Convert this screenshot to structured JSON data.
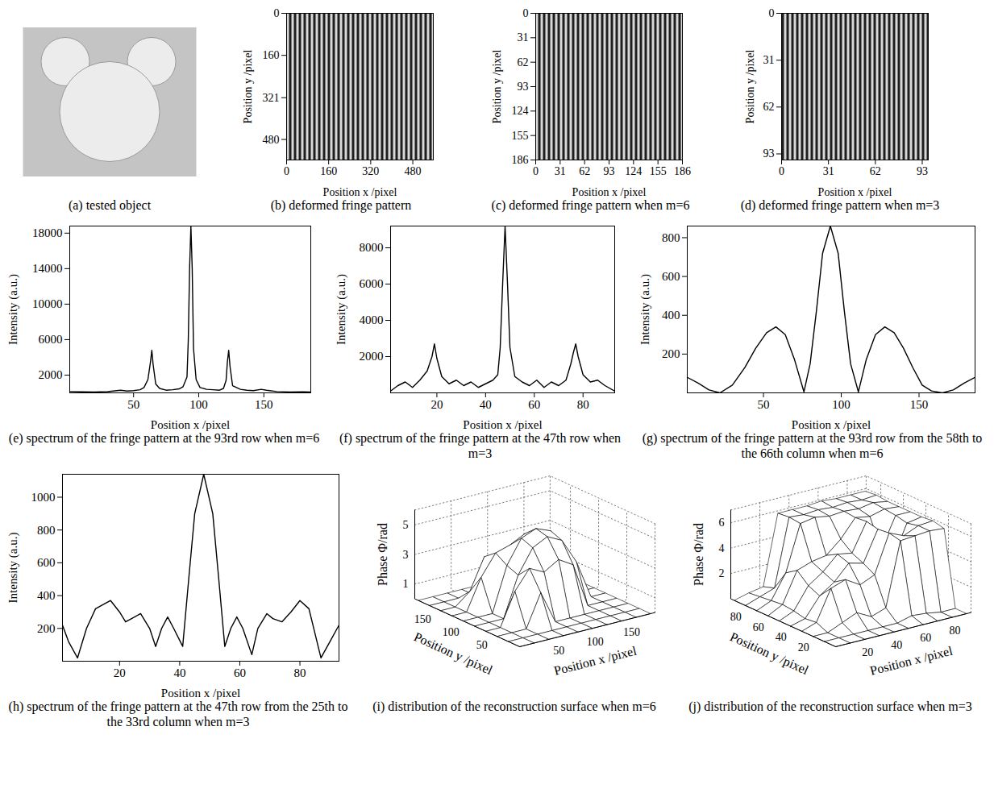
{
  "chart_data": [
    {
      "type": "photo",
      "title": "(a) tested object"
    },
    {
      "type": "image",
      "title": "(b) deformed fringe pattern",
      "xlabel": "Position x /pixel",
      "ylabel": "Position y /pixel",
      "xlim": [
        0,
        558
      ],
      "ylim": [
        0,
        558
      ],
      "xticks": [
        0,
        160,
        320,
        480
      ],
      "yticks": [
        0,
        160,
        321,
        480
      ]
    },
    {
      "type": "image",
      "title": "(c) deformed fringe pattern when m=6",
      "xlabel": "Position x /pixel",
      "ylabel": "Position y /pixel",
      "xlim": [
        0,
        186
      ],
      "ylim": [
        0,
        186
      ],
      "xticks": [
        0,
        31,
        62,
        93,
        124,
        155,
        186
      ],
      "yticks": [
        0,
        31,
        62,
        93,
        124,
        155,
        186
      ]
    },
    {
      "type": "image",
      "title": "(d) deformed fringe pattern when m=3",
      "xlabel": "Position x /pixel",
      "ylabel": "Position y /pixel",
      "xlim": [
        0,
        97
      ],
      "ylim": [
        0,
        97
      ],
      "xticks": [
        0,
        31,
        62,
        93
      ],
      "yticks": [
        0,
        31,
        62,
        93
      ]
    },
    {
      "type": "line",
      "title": "(e) spectrum of the fringe pattern at the 93rd row when m=6",
      "xlabel": "Position x /pixel",
      "ylabel": "Intensity (a.u.)",
      "color": "#000000",
      "x": [
        1,
        10,
        20,
        30,
        40,
        45,
        50,
        55,
        58,
        61,
        63,
        64,
        65,
        67,
        70,
        75,
        80,
        85,
        88,
        91,
        92,
        93,
        94,
        95,
        96,
        98,
        101,
        106,
        111,
        116,
        119,
        121,
        122,
        123,
        124,
        126,
        129,
        132,
        137,
        142,
        148,
        152,
        160,
        170,
        180,
        186
      ],
      "values": [
        150,
        120,
        100,
        130,
        300,
        200,
        250,
        350,
        600,
        1500,
        3500,
        4800,
        3200,
        1000,
        500,
        300,
        350,
        450,
        700,
        1800,
        6000,
        14000,
        18800,
        14000,
        5000,
        1500,
        600,
        400,
        350,
        300,
        500,
        1400,
        3500,
        4800,
        3000,
        800,
        600,
        400,
        300,
        250,
        400,
        300,
        150,
        100,
        120,
        100
      ],
      "xlim": [
        1,
        186
      ],
      "ylim": [
        0,
        18800
      ],
      "xticks": [
        50,
        100,
        150
      ],
      "yticks": [
        2000,
        6000,
        10000,
        14000,
        18000
      ]
    },
    {
      "type": "line",
      "title": "(f) spectrum of the fringe pattern at the 47th row when m=3",
      "xlabel": "Position x /pixel",
      "ylabel": "Intensity (a.u.)",
      "color": "#000000",
      "x": [
        1,
        4,
        7,
        10,
        13,
        16,
        18,
        19,
        20,
        22,
        25,
        28,
        31,
        34,
        37,
        40,
        43,
        45,
        46,
        47,
        48,
        49,
        50,
        52,
        55,
        58,
        61,
        64,
        67,
        70,
        73,
        75,
        76,
        77,
        78,
        80,
        83,
        86,
        89,
        93
      ],
      "values": [
        100,
        400,
        600,
        300,
        700,
        1200,
        2000,
        2700,
        1900,
        900,
        500,
        700,
        400,
        600,
        300,
        500,
        700,
        1000,
        2500,
        6000,
        9200,
        6000,
        2500,
        900,
        600,
        400,
        700,
        300,
        600,
        400,
        700,
        1600,
        2200,
        2700,
        2000,
        1000,
        600,
        700,
        400,
        100
      ],
      "xlim": [
        1,
        93
      ],
      "ylim": [
        0,
        9200
      ],
      "xticks": [
        20,
        40,
        60,
        80
      ],
      "yticks": [
        2000,
        4000,
        6000,
        8000
      ]
    },
    {
      "type": "line",
      "title": "(g) spectrum of the fringe pattern at the 93rd row from the 58th to the 66th column when m=6",
      "xlabel": "Position x /pixel",
      "ylabel": "Intensity (a.u.)",
      "color": "#000000",
      "x": [
        1,
        8,
        15,
        22,
        30,
        38,
        45,
        52,
        58,
        64,
        70,
        76,
        80,
        84,
        88,
        93,
        98,
        102,
        106,
        111,
        116,
        122,
        128,
        134,
        140,
        146,
        152,
        158,
        165,
        172,
        179,
        186
      ],
      "values": [
        80,
        50,
        15,
        0,
        40,
        130,
        230,
        310,
        340,
        300,
        170,
        5,
        150,
        420,
        720,
        860,
        720,
        420,
        150,
        5,
        170,
        300,
        340,
        310,
        230,
        130,
        40,
        10,
        0,
        15,
        50,
        80
      ],
      "xlim": [
        1,
        186
      ],
      "ylim": [
        0,
        860
      ],
      "xticks": [
        50,
        100,
        150
      ],
      "yticks": [
        200,
        400,
        600,
        800
      ]
    },
    {
      "type": "line",
      "title": "(h) spectrum of the fringe pattern at the 47th row from the 25th to the 33rd column when m=3",
      "xlabel": "Position x /pixel",
      "ylabel": "Intensity (a.u.)",
      "color": "#000000",
      "x": [
        1,
        3,
        6,
        9,
        12,
        17,
        20,
        22,
        24,
        27,
        30,
        32,
        34,
        36,
        38,
        41,
        43,
        45,
        48,
        51,
        53,
        55,
        57,
        59,
        61,
        64,
        66,
        69,
        71,
        74,
        77,
        80,
        83,
        87,
        90,
        93
      ],
      "values": [
        220,
        120,
        20,
        200,
        320,
        370,
        300,
        240,
        260,
        290,
        200,
        90,
        200,
        270,
        200,
        90,
        500,
        900,
        1140,
        900,
        500,
        90,
        200,
        270,
        200,
        40,
        200,
        290,
        260,
        240,
        300,
        370,
        320,
        20,
        120,
        220
      ],
      "xlim": [
        1,
        93
      ],
      "ylim": [
        0,
        1140
      ],
      "xticks": [
        20,
        40,
        60,
        80
      ],
      "yticks": [
        200,
        400,
        600,
        800,
        1000
      ]
    },
    {
      "type": "surface",
      "title": "(i) distribution of the reconstruction surface when m=6",
      "xlabel": "Position x /pixel",
      "ylabel": "Position y /pixel",
      "zlabel": "Phase Φ/rad",
      "color": "#000000",
      "x": [
        0,
        20,
        40,
        60,
        80,
        100,
        120,
        140,
        160,
        180
      ],
      "y": [
        0,
        20,
        40,
        60,
        80,
        100,
        120,
        140,
        160,
        180
      ],
      "z": [
        [
          0,
          0,
          0,
          0,
          0,
          0,
          0,
          0,
          0,
          0
        ],
        [
          0,
          0,
          0,
          0,
          0,
          0,
          0,
          0,
          0,
          0
        ],
        [
          0,
          0,
          0,
          2.2,
          0,
          0,
          0,
          0,
          0,
          0
        ],
        [
          0,
          0,
          2.2,
          3.5,
          3.0,
          3.6,
          3.0,
          0,
          0,
          0
        ],
        [
          0,
          0,
          0,
          2.7,
          4.3,
          4.8,
          4.3,
          2.6,
          0,
          0
        ],
        [
          0,
          0,
          0,
          3.0,
          4.6,
          5.0,
          4.6,
          3.0,
          0,
          0
        ],
        [
          0,
          0,
          2.1,
          3.5,
          3.8,
          4.3,
          3.8,
          1.7,
          0,
          0
        ],
        [
          0,
          0,
          0.8,
          2.9,
          1.8,
          2.2,
          0.9,
          0,
          0,
          0
        ],
        [
          0,
          0,
          0,
          0,
          0,
          0,
          0,
          0,
          0,
          0
        ],
        [
          0,
          0,
          0,
          0,
          0,
          0,
          0,
          0,
          0,
          0
        ]
      ],
      "xlim": [
        0,
        186
      ],
      "ylim": [
        0,
        186
      ],
      "zlim": [
        0,
        6
      ],
      "xticks": [
        50,
        100,
        150
      ],
      "yticks": [
        50,
        100,
        150
      ],
      "zticks": [
        1,
        3,
        5
      ]
    },
    {
      "type": "surface",
      "title": "(j) distribution of the reconstruction surface when m=3",
      "xlabel": "Position x /pixel",
      "ylabel": "Position y /pixel",
      "zlabel": "Phase Φ/rad",
      "color": "#000000",
      "x": [
        0,
        10,
        20,
        30,
        40,
        50,
        60,
        70,
        80,
        90
      ],
      "y": [
        0,
        10,
        20,
        30,
        40,
        50,
        60,
        70,
        80,
        90
      ],
      "z": [
        [
          0,
          0,
          0,
          0,
          0,
          0,
          0,
          0,
          0,
          0
        ],
        [
          0,
          0,
          0,
          0,
          0,
          0,
          0.3,
          0.2,
          0,
          0
        ],
        [
          0,
          0,
          0.5,
          1.0,
          0.4,
          0.8,
          5.8,
          5.9,
          6.0,
          5.9
        ],
        [
          0,
          0.4,
          2.8,
          3.2,
          2.5,
          3.0,
          6.0,
          5.5,
          6.0,
          6.1
        ],
        [
          0,
          0.3,
          1.8,
          2.6,
          3.8,
          3.5,
          5.9,
          3.2,
          5.8,
          6.0
        ],
        [
          0,
          0.5,
          2.2,
          3.0,
          4.1,
          3.9,
          6.1,
          3.6,
          6.0,
          6.0
        ],
        [
          0,
          0.6,
          3.0,
          3.4,
          3.6,
          4.6,
          6.0,
          5.8,
          6.1,
          6.0
        ],
        [
          0,
          0.5,
          2.4,
          6.0,
          6.2,
          6.0,
          6.1,
          6.0,
          6.2,
          6.0
        ],
        [
          0,
          0.4,
          0.8,
          6.1,
          6.0,
          6.1,
          6.0,
          6.1,
          6.0,
          6.1
        ],
        [
          0,
          0.3,
          0.5,
          6.0,
          6.0,
          6.0,
          6.1,
          6.0,
          6.0,
          6.0
        ]
      ],
      "xlim": [
        0,
        93
      ],
      "ylim": [
        0,
        93
      ],
      "zlim": [
        0,
        7
      ],
      "xticks": [
        20,
        40,
        60,
        80
      ],
      "yticks": [
        20,
        40,
        60,
        80
      ],
      "zticks": [
        2,
        4,
        6
      ]
    }
  ]
}
